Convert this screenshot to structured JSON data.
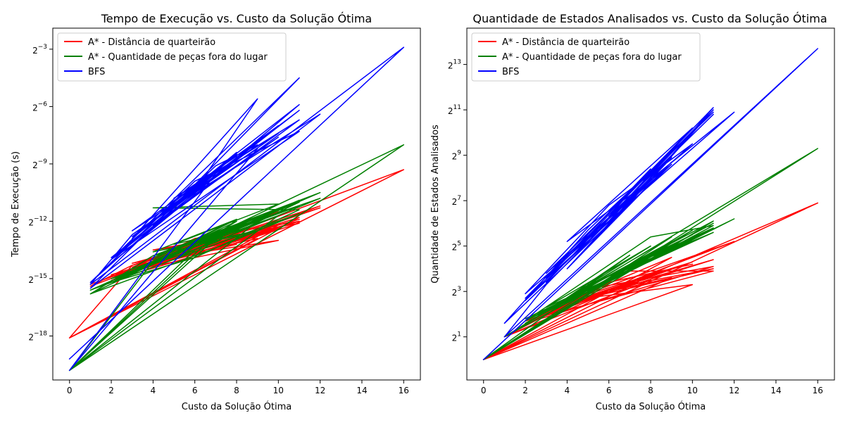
{
  "chart_data": [
    {
      "type": "line",
      "title": "Tempo de Execução vs. Custo da Solução Ótima",
      "xlabel": "Custo da Solução Ótima",
      "ylabel": "Tempo de Execução (s)",
      "xlim": [
        -0.8,
        16.8
      ],
      "x_ticks": [
        0,
        2,
        4,
        6,
        8,
        10,
        12,
        14,
        16
      ],
      "y_scale": "log2",
      "ylim_log2": [
        -20.3,
        -1.9
      ],
      "y_ticks": [
        {
          "exp": -18,
          "base": "2",
          "sup": "−18"
        },
        {
          "exp": -15,
          "base": "2",
          "sup": "−15"
        },
        {
          "exp": -12,
          "base": "2",
          "sup": "−12"
        },
        {
          "exp": -9,
          "base": "2",
          "sup": "−9"
        },
        {
          "exp": -6,
          "base": "2",
          "sup": "−6"
        },
        {
          "exp": -3,
          "base": "2",
          "sup": "−3"
        }
      ],
      "legend_position": "upper-left",
      "series": [
        {
          "name": "A* - Distância de quarteirão",
          "color": "#ff0000",
          "y_log2": true,
          "points": [
            [
              0,
              -18.1
            ],
            [
              16,
              -9.3
            ],
            [
              1,
              -15.4
            ],
            [
              3,
              -14.3
            ],
            [
              11,
              -12.0
            ],
            [
              2,
              -15.0
            ],
            [
              6,
              -13.6
            ],
            [
              12,
              -11.2
            ],
            [
              4,
              -14.0
            ],
            [
              10,
              -13.0
            ],
            [
              2,
              -14.8
            ],
            [
              11,
              -11.8
            ],
            [
              0,
              -18.1
            ],
            [
              10,
              -12.2
            ],
            [
              3,
              -14.4
            ],
            [
              8,
              -12.3
            ],
            [
              2,
              -15.1
            ],
            [
              6,
              -13.8
            ],
            [
              11,
              -12.1
            ],
            [
              4,
              -13.5
            ],
            [
              9,
              -12.8
            ],
            [
              3,
              -14.2
            ],
            [
              7,
              -13.0
            ],
            [
              1,
              -15.3
            ],
            [
              5,
              -13.7
            ],
            [
              11,
              -11.9
            ],
            [
              3,
              -14.3
            ],
            [
              0,
              -18.1
            ],
            [
              9,
              -12.9
            ],
            [
              4,
              -14.1
            ],
            [
              10,
              -11.5
            ],
            [
              2,
              -15.0
            ],
            [
              6,
              -12.9
            ],
            [
              11,
              -12.0
            ],
            [
              3,
              -14.5
            ],
            [
              8,
              -13.2
            ],
            [
              5,
              -14.0
            ],
            [
              10,
              -12.4
            ],
            [
              4,
              -14.0
            ],
            [
              12,
              -11.3
            ],
            [
              5,
              -13.9
            ],
            [
              2,
              -15.1
            ],
            [
              8,
              -12.5
            ],
            [
              3,
              -14.3
            ]
          ]
        },
        {
          "name": "A* - Quantidade de peças fora do lugar",
          "color": "#008000",
          "y_log2": true,
          "points": [
            [
              0,
              -19.8
            ],
            [
              16,
              -8.0
            ],
            [
              1,
              -15.8
            ],
            [
              4,
              -13.8
            ],
            [
              12,
              -10.5
            ],
            [
              2,
              -15.2
            ],
            [
              6,
              -13.9
            ],
            [
              11,
              -11.4
            ],
            [
              4,
              -11.3
            ],
            [
              10,
              -11.1
            ],
            [
              5,
              -13.2
            ],
            [
              7,
              -12.7
            ],
            [
              6,
              -13.7
            ],
            [
              0,
              -19.8
            ],
            [
              10,
              -11.7
            ],
            [
              3,
              -14.5
            ],
            [
              9,
              -12.1
            ],
            [
              2,
              -15.0
            ],
            [
              7,
              -13.1
            ],
            [
              11,
              -11.0
            ],
            [
              4,
              -13.9
            ],
            [
              8,
              -12.2
            ],
            [
              1,
              -15.6
            ],
            [
              5,
              -14.0
            ],
            [
              11,
              -10.9
            ],
            [
              4,
              -14.1
            ],
            [
              0,
              -19.8
            ],
            [
              9,
              -12.0
            ],
            [
              3,
              -14.6
            ],
            [
              8,
              -12.3
            ],
            [
              5,
              -13.5
            ],
            [
              11,
              -11.2
            ],
            [
              6,
              -13.2
            ],
            [
              2,
              -15.2
            ],
            [
              8,
              -11.9
            ],
            [
              4,
              -13.6
            ],
            [
              9,
              -12.5
            ],
            [
              4,
              -13.8
            ],
            [
              1,
              -15.8
            ],
            [
              7,
              -13.4
            ],
            [
              11,
              -11.6
            ],
            [
              5,
              -14.0
            ],
            [
              8,
              -12.0
            ],
            [
              3,
              -14.6
            ],
            [
              9,
              -11.8
            ],
            [
              6,
              -13.3
            ],
            [
              10,
              -11.4
            ],
            [
              4,
              -13.8
            ],
            [
              12,
              -10.8
            ],
            [
              6,
              -13.5
            ],
            [
              0,
              -19.8
            ],
            [
              8,
              -11.9
            ],
            [
              4,
              -14.0
            ]
          ]
        },
        {
          "name": "BFS",
          "color": "#0000ff",
          "y_log2": true,
          "points": [
            [
              0,
              -19.2
            ],
            [
              16,
              -2.9
            ],
            [
              1,
              -15.3
            ],
            [
              3,
              -12.7
            ],
            [
              6,
              -10.4
            ],
            [
              9,
              -5.6
            ],
            [
              3,
              -12.9
            ],
            [
              8,
              -8.5
            ],
            [
              2,
              -14.0
            ],
            [
              11,
              -4.5
            ],
            [
              5,
              -11.2
            ],
            [
              12,
              -6.4
            ],
            [
              1,
              -15.5
            ],
            [
              6,
              -10.1
            ],
            [
              11,
              -6.7
            ],
            [
              2,
              -13.9
            ],
            [
              7,
              -9.5
            ],
            [
              0,
              -19.8
            ],
            [
              9,
              -8.2
            ],
            [
              3,
              -12.5
            ],
            [
              10,
              -7.0
            ],
            [
              4,
              -12.0
            ],
            [
              8,
              -8.4
            ],
            [
              1,
              -15.2
            ],
            [
              5,
              -11.0
            ],
            [
              11,
              -5.9
            ],
            [
              2,
              -14.2
            ],
            [
              6,
              -10.6
            ],
            [
              10,
              -7.6
            ],
            [
              4,
              -12.2
            ],
            [
              7,
              -9.1
            ],
            [
              9,
              -8.0
            ],
            [
              3,
              -12.8
            ],
            [
              11,
              -6.2
            ],
            [
              5,
              -11.3
            ],
            [
              8,
              -8.8
            ],
            [
              2,
              -14.0
            ],
            [
              11,
              -7.3
            ],
            [
              6,
              -9.9
            ],
            [
              4,
              -12.0
            ],
            [
              10,
              -7.4
            ],
            [
              5,
              -10.8
            ],
            [
              8,
              -8.6
            ]
          ]
        }
      ]
    },
    {
      "type": "line",
      "title": "Quantidade de Estados Analisados vs. Custo da Solução Ótima",
      "xlabel": "Custo da Solução Ótima",
      "ylabel": "Quantidade de Estados Analisados",
      "xlim": [
        -0.8,
        16.8
      ],
      "x_ticks": [
        0,
        2,
        4,
        6,
        8,
        10,
        12,
        14,
        16
      ],
      "y_scale": "log2",
      "ylim_log2": [
        -0.9,
        14.6
      ],
      "y_ticks": [
        {
          "exp": 1,
          "base": "2",
          "sup": "1"
        },
        {
          "exp": 3,
          "base": "2",
          "sup": "3"
        },
        {
          "exp": 5,
          "base": "2",
          "sup": "5"
        },
        {
          "exp": 7,
          "base": "2",
          "sup": "7"
        },
        {
          "exp": 9,
          "base": "2",
          "sup": "9"
        },
        {
          "exp": 11,
          "base": "2",
          "sup": "11"
        },
        {
          "exp": 13,
          "base": "2",
          "sup": "13"
        }
      ],
      "legend_position": "upper-left",
      "series": [
        {
          "name": "A* - Distância de quarteirão",
          "color": "#ff0000",
          "y_log2": true,
          "points": [
            [
              0,
              0.0
            ],
            [
              16,
              6.9
            ],
            [
              1,
              1.0
            ],
            [
              5,
              3.1
            ],
            [
              11,
              4.1
            ],
            [
              2,
              1.6
            ],
            [
              8,
              3.8
            ],
            [
              12,
              5.2
            ],
            [
              4,
              2.6
            ],
            [
              10,
              3.3
            ],
            [
              0,
              0.0
            ],
            [
              9,
              4.5
            ],
            [
              3,
              2.2
            ],
            [
              7,
              3.9
            ],
            [
              11,
              3.9
            ],
            [
              2,
              1.7
            ],
            [
              6,
              3.0
            ],
            [
              10,
              4.3
            ],
            [
              4,
              2.6
            ],
            [
              9,
              3.6
            ],
            [
              0,
              0.0
            ],
            [
              8,
              3.7
            ],
            [
              3,
              2.1
            ],
            [
              11,
              4.4
            ],
            [
              5,
              2.8
            ],
            [
              9,
              4.0
            ],
            [
              2,
              1.6
            ],
            [
              7,
              3.3
            ],
            [
              11,
              4.0
            ],
            [
              4,
              2.5
            ],
            [
              8,
              3.5
            ],
            [
              1,
              1.0
            ],
            [
              6,
              3.4
            ],
            [
              10,
              4.2
            ]
          ]
        },
        {
          "name": "A* - Quantidade de peças fora do lugar",
          "color": "#008000",
          "y_log2": true,
          "points": [
            [
              0,
              0.0
            ],
            [
              16,
              9.3
            ],
            [
              1,
              1.0
            ],
            [
              4,
              2.5
            ],
            [
              12,
              6.2
            ],
            [
              2,
              1.7
            ],
            [
              8,
              5.4
            ],
            [
              11,
              5.9
            ],
            [
              3,
              2.0
            ],
            [
              10,
              5.7
            ],
            [
              0,
              0.0
            ],
            [
              9,
              5.0
            ],
            [
              4,
              2.6
            ],
            [
              11,
              6.0
            ],
            [
              2,
              1.6
            ],
            [
              7,
              4.2
            ],
            [
              10,
              5.2
            ],
            [
              3,
              2.3
            ],
            [
              8,
              5.0
            ],
            [
              1,
              1.0
            ],
            [
              6,
              3.5
            ],
            [
              11,
              5.6
            ],
            [
              5,
              3.3
            ],
            [
              9,
              4.8
            ],
            [
              2,
              1.8
            ],
            [
              8,
              4.4
            ],
            [
              11,
              6.1
            ],
            [
              4,
              2.7
            ],
            [
              9,
              5.4
            ],
            [
              0,
              0.0
            ],
            [
              7,
              4.6
            ],
            [
              3,
              2.1
            ],
            [
              10,
              5.5
            ],
            [
              6,
              3.7
            ],
            [
              11,
              5.8
            ],
            [
              2,
              1.7
            ],
            [
              9,
              5.2
            ]
          ]
        },
        {
          "name": "BFS",
          "color": "#0000ff",
          "y_log2": true,
          "points": [
            [
              0,
              0.0
            ],
            [
              16,
              13.7
            ],
            [
              1,
              1.0
            ],
            [
              3,
              3.3
            ],
            [
              6,
              6.1
            ],
            [
              9,
              9.0
            ],
            [
              11,
              11.1
            ],
            [
              2,
              2.6
            ],
            [
              5,
              5.2
            ],
            [
              8,
              8.2
            ],
            [
              11,
              11.0
            ],
            [
              3,
              3.4
            ],
            [
              7,
              7.2
            ],
            [
              12,
              10.9
            ],
            [
              2,
              2.9
            ],
            [
              6,
              6.8
            ],
            [
              10,
              9.5
            ],
            [
              4,
              4.6
            ],
            [
              9,
              8.6
            ],
            [
              1,
              1.6
            ],
            [
              5,
              5.7
            ],
            [
              11,
              10.9
            ],
            [
              3,
              3.8
            ],
            [
              8,
              7.9
            ],
            [
              4,
              5.2
            ],
            [
              10,
              10.2
            ],
            [
              2,
              2.7
            ],
            [
              7,
              6.9
            ],
            [
              11,
              11.0
            ],
            [
              4,
              4.0
            ],
            [
              9,
              8.7
            ],
            [
              5,
              5.0
            ],
            [
              9,
              8.9
            ],
            [
              3,
              3.6
            ],
            [
              8,
              8.4
            ],
            [
              6,
              6.3
            ],
            [
              11,
              10.8
            ]
          ]
        }
      ]
    }
  ]
}
